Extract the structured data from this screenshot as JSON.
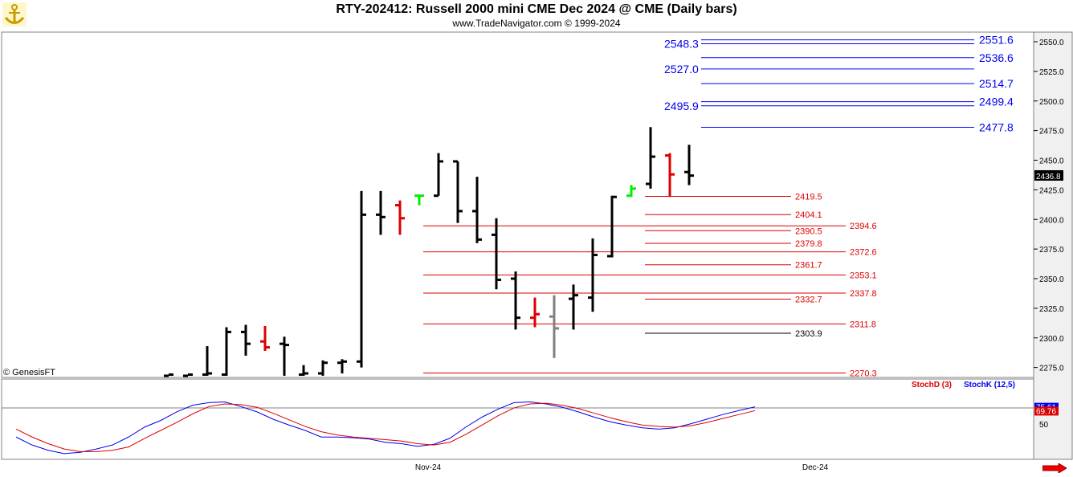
{
  "title": "RTY-202412:  Russell 2000 mini CME Dec 2024 @ CME  (Daily bars)",
  "subtitle": "www.TradeNavigator.com © 1999-2024",
  "watermark": "© GenesisFT",
  "logo_icon": "anchor-logo-icon",
  "nav_icon": "arrow-right-icon",
  "colors": {
    "blue": "#0000ee",
    "red": "#dd0000",
    "green": "#00ee00",
    "grey": "#808080",
    "bar": "#000000"
  },
  "chart_data": [
    {
      "type": "ohlc",
      "y_ticks": [
        "2550.0",
        "2525.0",
        "2500.0",
        "2475.0",
        "2450.0",
        "2425.0",
        "2400.0",
        "2375.0",
        "2350.0",
        "2325.0",
        "2300.0",
        "2275.0"
      ],
      "ylim": [
        2268,
        2560
      ],
      "x_labels": [
        "Nov-24",
        "Dec-24"
      ],
      "last_price": "2436.8",
      "bars": [
        {
          "o": 2268,
          "h": 2269,
          "l": 2268,
          "c": 2269,
          "color": "black"
        },
        {
          "o": 2268,
          "h": 2269,
          "l": 2268,
          "c": 2269,
          "color": "black"
        },
        {
          "o": 2269,
          "h": 2293,
          "l": 2268,
          "c": 2270,
          "color": "black"
        },
        {
          "o": 2269,
          "h": 2309,
          "l": 2268,
          "c": 2305,
          "color": "black"
        },
        {
          "o": 2305,
          "h": 2311,
          "l": 2285,
          "c": 2295,
          "color": "black"
        },
        {
          "o": 2297,
          "h": 2310,
          "l": 2289,
          "c": 2292,
          "color": "red"
        },
        {
          "o": 2295,
          "h": 2301,
          "l": 2268,
          "c": 2294,
          "color": "black"
        },
        {
          "o": 2269,
          "h": 2277,
          "l": 2268,
          "c": 2270,
          "color": "black"
        },
        {
          "o": 2270,
          "h": 2281,
          "l": 2268,
          "c": 2279,
          "color": "black"
        },
        {
          "o": 2279,
          "h": 2282,
          "l": 2270,
          "c": 2280,
          "color": "black"
        },
        {
          "o": 2280,
          "h": 2424,
          "l": 2275,
          "c": 2404,
          "color": "black"
        },
        {
          "o": 2404,
          "h": 2424,
          "l": 2387,
          "c": 2402,
          "color": "black"
        },
        {
          "o": 2412,
          "h": 2416,
          "l": 2387,
          "c": 2401,
          "color": "red"
        },
        {
          "o": 2420,
          "h": 2421,
          "l": 2412,
          "c": 2420,
          "color": "green"
        },
        {
          "o": 2420,
          "h": 2456,
          "l": 2420,
          "c": 2449,
          "color": "black"
        },
        {
          "o": 2449,
          "h": 2449,
          "l": 2397,
          "c": 2407,
          "color": "black"
        },
        {
          "o": 2407,
          "h": 2436,
          "l": 2380,
          "c": 2383,
          "color": "black"
        },
        {
          "o": 2387,
          "h": 2401,
          "l": 2341,
          "c": 2349,
          "color": "black"
        },
        {
          "o": 2350,
          "h": 2356,
          "l": 2307,
          "c": 2317,
          "color": "black"
        },
        {
          "o": 2317,
          "h": 2334,
          "l": 2309,
          "c": 2320,
          "color": "red"
        },
        {
          "o": 2318,
          "h": 2336,
          "l": 2283,
          "c": 2308,
          "color": "grey"
        },
        {
          "o": 2333,
          "h": 2345,
          "l": 2307,
          "c": 2336,
          "color": "black"
        },
        {
          "o": 2334,
          "h": 2384,
          "l": 2322,
          "c": 2370,
          "color": "black"
        },
        {
          "o": 2369,
          "h": 2420,
          "l": 2368,
          "c": 2419,
          "color": "black"
        },
        {
          "o": 2420,
          "h": 2429,
          "l": 2419,
          "c": 2426,
          "color": "green"
        },
        {
          "o": 2430,
          "h": 2478,
          "l": 2426,
          "c": 2453,
          "color": "black"
        },
        {
          "o": 2454,
          "h": 2456,
          "l": 2419,
          "c": 2438,
          "color": "red"
        },
        {
          "o": 2440,
          "h": 2463,
          "l": 2429,
          "c": 2437,
          "color": "black"
        }
      ],
      "blue_levels": [
        {
          "value": 2551.6,
          "label": "2551.6",
          "side": "right"
        },
        {
          "value": 2548.3,
          "label": "2548.3",
          "side": "left"
        },
        {
          "value": 2536.6,
          "label": "2536.6",
          "side": "right"
        },
        {
          "value": 2527.0,
          "label": "2527.0",
          "side": "left"
        },
        {
          "value": 2514.7,
          "label": "2514.7",
          "side": "right"
        },
        {
          "value": 2499.4,
          "label": "2499.4",
          "side": "right"
        },
        {
          "value": 2495.9,
          "label": "2495.9",
          "side": "left"
        },
        {
          "value": 2477.8,
          "label": "2477.8",
          "side": "right"
        }
      ],
      "red_levels": [
        {
          "value": 2419.5,
          "label": "2419.5",
          "group": "short"
        },
        {
          "value": 2404.1,
          "label": "2404.1",
          "group": "short"
        },
        {
          "value": 2394.6,
          "label": "2394.6",
          "group": "long"
        },
        {
          "value": 2390.5,
          "label": "2390.5",
          "group": "short"
        },
        {
          "value": 2379.8,
          "label": "2379.8",
          "group": "short"
        },
        {
          "value": 2372.6,
          "label": "2372.6",
          "group": "long"
        },
        {
          "value": 2361.7,
          "label": "2361.7",
          "group": "short"
        },
        {
          "value": 2353.1,
          "label": "2353.1",
          "group": "long"
        },
        {
          "value": 2337.8,
          "label": "2337.8",
          "group": "long"
        },
        {
          "value": 2332.7,
          "label": "2332.7",
          "group": "short"
        },
        {
          "value": 2311.8,
          "label": "2311.8",
          "group": "long"
        },
        {
          "value": 2270.3,
          "label": "2270.3",
          "group": "long"
        }
      ],
      "black_levels": [
        {
          "value": 2303.9,
          "label": "2303.9"
        }
      ]
    },
    {
      "type": "line",
      "legend": [
        {
          "name": "StochD (3)",
          "color": "red"
        },
        {
          "name": "StochK (12,5)",
          "color": "blue"
        }
      ],
      "y_ticks": [
        "50"
      ],
      "ylim": [
        0,
        100
      ],
      "k_value": "75.61",
      "d_value": "69.76",
      "series": [
        {
          "name": "StochK (12,5)",
          "color": "blue",
          "values": [
            [
              0,
              30
            ],
            [
              0.5,
              18
            ],
            [
              1,
              10
            ],
            [
              1.5,
              5
            ],
            [
              2,
              7
            ],
            [
              2.5,
              12
            ],
            [
              3,
              18
            ],
            [
              3.5,
              30
            ],
            [
              4,
              45
            ],
            [
              4.5,
              55
            ],
            [
              5,
              68
            ],
            [
              5.5,
              78
            ],
            [
              6,
              82
            ],
            [
              6.5,
              83
            ],
            [
              7,
              76
            ],
            [
              7.5,
              68
            ],
            [
              8,
              57
            ],
            [
              8.5,
              48
            ],
            [
              9,
              40
            ],
            [
              9.5,
              30
            ],
            [
              10,
              30
            ],
            [
              10.5,
              29
            ],
            [
              11,
              27
            ],
            [
              11.5,
              22
            ],
            [
              12,
              20
            ],
            [
              12.5,
              16
            ],
            [
              13,
              19
            ],
            [
              13.5,
              28
            ],
            [
              14,
              45
            ],
            [
              14.5,
              60
            ],
            [
              15,
              72
            ],
            [
              15.5,
              82
            ],
            [
              16,
              83
            ],
            [
              16.5,
              80
            ],
            [
              17,
              75
            ],
            [
              17.5,
              68
            ],
            [
              18,
              60
            ],
            [
              18.5,
              53
            ],
            [
              19,
              48
            ],
            [
              19.5,
              44
            ],
            [
              20,
              42
            ],
            [
              20.5,
              44
            ],
            [
              21,
              50
            ],
            [
              21.5,
              57
            ],
            [
              22,
              64
            ],
            [
              22.5,
              70
            ],
            [
              23,
              75.61
            ]
          ]
        },
        {
          "name": "StochD (3)",
          "color": "red",
          "values": [
            [
              0,
              42
            ],
            [
              0.5,
              30
            ],
            [
              1,
              20
            ],
            [
              1.5,
              12
            ],
            [
              2,
              8
            ],
            [
              2.5,
              8
            ],
            [
              3,
              10
            ],
            [
              3.5,
              15
            ],
            [
              4,
              28
            ],
            [
              4.5,
              40
            ],
            [
              5,
              52
            ],
            [
              5.5,
              65
            ],
            [
              6,
              76
            ],
            [
              6.5,
              80
            ],
            [
              7,
              79
            ],
            [
              7.5,
              75
            ],
            [
              8,
              66
            ],
            [
              8.5,
              56
            ],
            [
              9,
              46
            ],
            [
              9.5,
              38
            ],
            [
              10,
              33
            ],
            [
              10.5,
              30
            ],
            [
              11,
              28
            ],
            [
              11.5,
              26
            ],
            [
              12,
              24
            ],
            [
              12.5,
              20
            ],
            [
              13,
              18
            ],
            [
              13.5,
              22
            ],
            [
              14,
              34
            ],
            [
              14.5,
              48
            ],
            [
              15,
              62
            ],
            [
              15.5,
              74
            ],
            [
              16,
              80
            ],
            [
              16.5,
              81
            ],
            [
              17,
              78
            ],
            [
              17.5,
              73
            ],
            [
              18,
              66
            ],
            [
              18.5,
              59
            ],
            [
              19,
              53
            ],
            [
              19.5,
              48
            ],
            [
              20,
              46
            ],
            [
              20.5,
              45
            ],
            [
              21,
              47
            ],
            [
              21.5,
              52
            ],
            [
              22,
              58
            ],
            [
              22.5,
              64
            ],
            [
              23,
              69.76
            ]
          ]
        }
      ]
    }
  ]
}
